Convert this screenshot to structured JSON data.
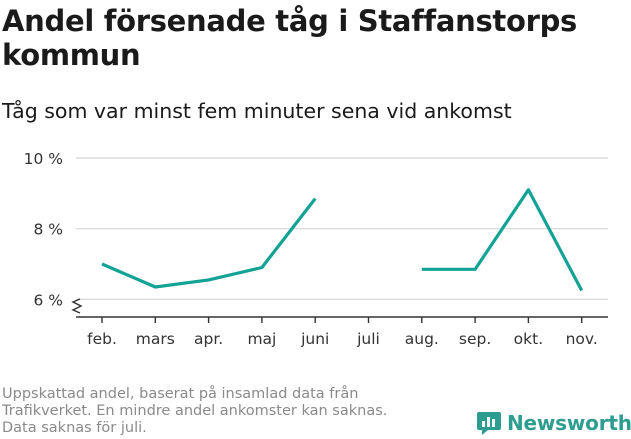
{
  "title": "Andel försenade tåg i Staffanstorps kommun",
  "subtitle": "Tåg som var minst fem minuter sena vid ankomst",
  "footnote": [
    "Uppskattad andel, baserat på insamlad data från",
    "Trafikverket. En mindre andel ankomster kan saknas.",
    "Data saknas för juli."
  ],
  "brand": "Newsworthy",
  "colors": {
    "line": "#13a396",
    "grid": "#dcdcdc",
    "axis": "#333333",
    "brand": "#2d9d90"
  },
  "chart_data": {
    "type": "line",
    "categories": [
      "feb.",
      "mars",
      "apr.",
      "maj",
      "juni",
      "juli",
      "aug.",
      "sep.",
      "okt.",
      "nov."
    ],
    "series": [
      {
        "name": "Andel försenade tåg",
        "values": [
          7.0,
          6.35,
          6.55,
          6.9,
          8.85,
          null,
          6.85,
          6.85,
          9.1,
          6.25
        ]
      }
    ],
    "yticks": [
      6,
      8,
      10
    ],
    "ytick_labels": [
      "6 %",
      "8 %",
      "10 %"
    ],
    "ylim": [
      5.5,
      10
    ],
    "ylabel": "",
    "xlabel": "",
    "grid": true,
    "axis_break": true
  }
}
